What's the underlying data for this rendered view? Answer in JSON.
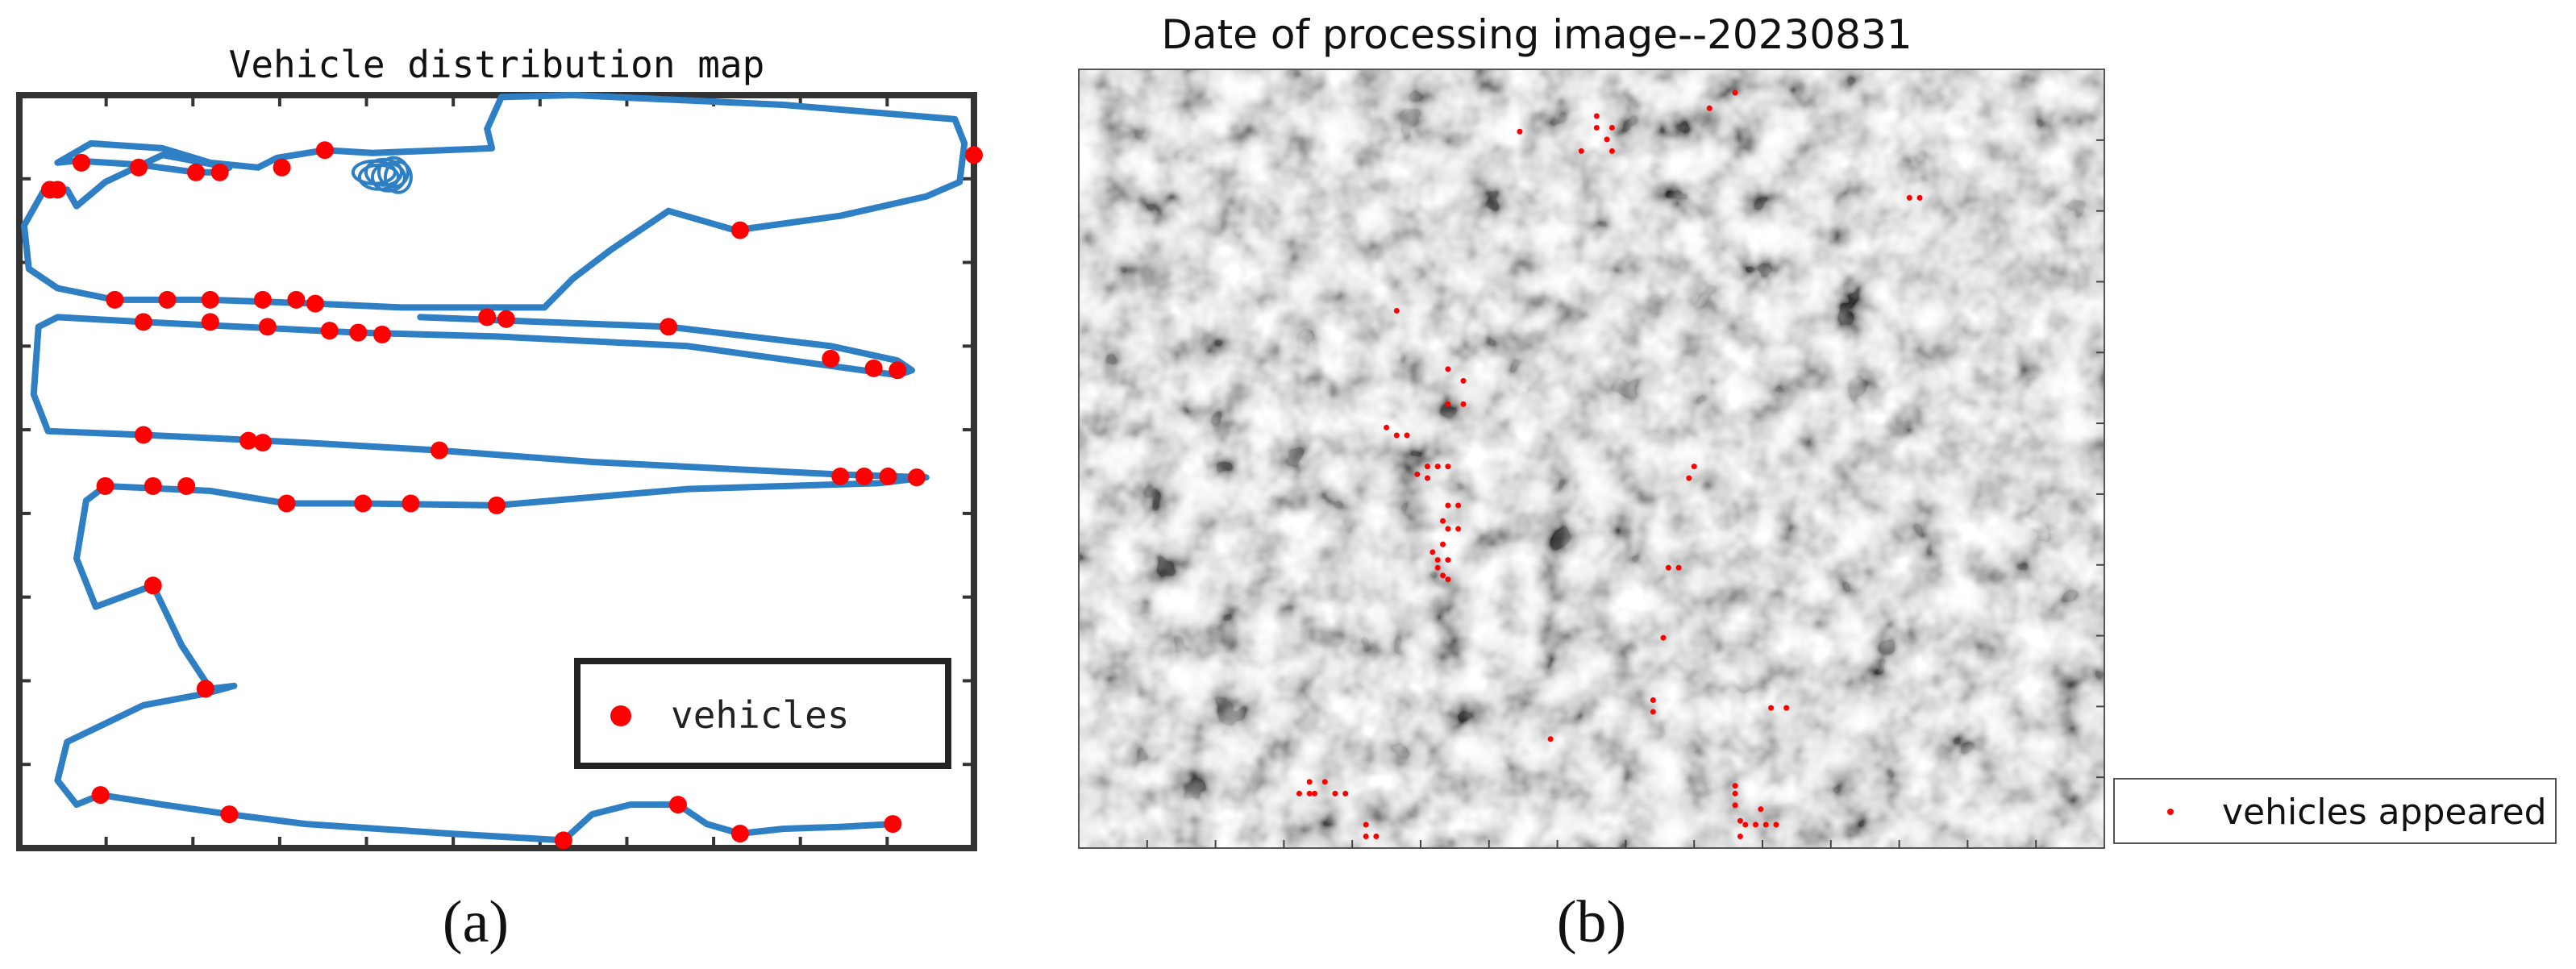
{
  "chart_data": [
    {
      "type": "scatter",
      "title": "Vehicle distribution map",
      "caption": "(a)",
      "xlabel": "",
      "ylabel": "",
      "xlim": [
        0,
        1000
      ],
      "ylim": [
        0,
        780
      ],
      "grid": false,
      "legend": {
        "position": "bottom-right",
        "entries": [
          "vehicles"
        ]
      },
      "series": [
        {
          "name": "vehicles",
          "marker": "circle",
          "color": "#ff0000",
          "points": [
            [
              65,
              710
            ],
            [
              40,
              682
            ],
            [
              32,
              682
            ],
            [
              125,
              705
            ],
            [
              185,
              700
            ],
            [
              210,
              700
            ],
            [
              275,
              705
            ],
            [
              320,
              723
            ],
            [
              1000,
              718
            ],
            [
              755,
              640
            ],
            [
              100,
              568
            ],
            [
              155,
              568
            ],
            [
              200,
              568
            ],
            [
              255,
              568
            ],
            [
              290,
              568
            ],
            [
              310,
              564
            ],
            [
              490,
              550
            ],
            [
              510,
              548
            ],
            [
              680,
              540
            ],
            [
              130,
              545
            ],
            [
              200,
              545
            ],
            [
              260,
              540
            ],
            [
              325,
              536
            ],
            [
              355,
              534
            ],
            [
              380,
              532
            ],
            [
              850,
              507
            ],
            [
              895,
              497
            ],
            [
              920,
              495
            ],
            [
              130,
              428
            ],
            [
              240,
              422
            ],
            [
              255,
              420
            ],
            [
              440,
              412
            ],
            [
              90,
              375
            ],
            [
              140,
              375
            ],
            [
              175,
              375
            ],
            [
              280,
              357
            ],
            [
              360,
              357
            ],
            [
              410,
              357
            ],
            [
              500,
              355
            ],
            [
              860,
              385
            ],
            [
              885,
              385
            ],
            [
              910,
              385
            ],
            [
              940,
              384
            ],
            [
              140,
              272
            ],
            [
              195,
              165
            ],
            [
              85,
              55
            ],
            [
              220,
              35
            ],
            [
              570,
              8
            ],
            [
              690,
              45
            ],
            [
              755,
              15
            ],
            [
              915,
              25
            ]
          ]
        },
        {
          "name": "trajectory",
          "color": "#2e7fc4",
          "points": [
            [
              40,
              710
            ],
            [
              60,
              712
            ],
            [
              125,
              708
            ],
            [
              185,
              700
            ],
            [
              210,
              700
            ],
            [
              220,
              705
            ],
            [
              150,
              718
            ],
            [
              90,
              690
            ],
            [
              60,
              665
            ],
            [
              50,
              682
            ],
            [
              25,
              680
            ],
            [
              5,
              645
            ],
            [
              10,
              600
            ],
            [
              40,
              580
            ],
            [
              100,
              568
            ],
            [
              200,
              568
            ],
            [
              310,
              564
            ],
            [
              400,
              560
            ],
            [
              550,
              560
            ],
            [
              580,
              590
            ],
            [
              620,
              620
            ],
            [
              680,
              660
            ],
            [
              750,
              640
            ],
            [
              860,
              655
            ],
            [
              950,
              675
            ],
            [
              985,
              690
            ],
            [
              990,
              730
            ],
            [
              980,
              755
            ],
            [
              800,
              770
            ],
            [
              580,
              780
            ],
            [
              505,
              778
            ],
            [
              490,
              745
            ],
            [
              495,
              725
            ],
            [
              370,
              720
            ],
            [
              320,
              723
            ],
            [
              270,
              715
            ],
            [
              250,
              705
            ],
            [
              200,
              710
            ],
            [
              150,
              725
            ],
            [
              75,
              730
            ],
            [
              40,
              710
            ]
          ]
        },
        {
          "name": "trajectory",
          "color": "#2e7fc4",
          "points": [
            [
              420,
              550
            ],
            [
              680,
              540
            ],
            [
              850,
              520
            ],
            [
              920,
              505
            ],
            [
              935,
              495
            ],
            [
              920,
              490
            ],
            [
              700,
              520
            ],
            [
              500,
              530
            ],
            [
              355,
              534
            ],
            [
              130,
              545
            ],
            [
              40,
              550
            ],
            [
              20,
              540
            ],
            [
              15,
              470
            ],
            [
              30,
              432
            ],
            [
              130,
              428
            ],
            [
              300,
              420
            ],
            [
              440,
              412
            ],
            [
              600,
              400
            ],
            [
              860,
              387
            ],
            [
              950,
              384
            ],
            [
              900,
              378
            ],
            [
              700,
              372
            ],
            [
              500,
              355
            ],
            [
              360,
              357
            ],
            [
              280,
              357
            ],
            [
              200,
              370
            ],
            [
              90,
              375
            ],
            [
              70,
              360
            ],
            [
              60,
              300
            ],
            [
              80,
              250
            ],
            [
              140,
              272
            ],
            [
              170,
              210
            ],
            [
              200,
              165
            ],
            [
              225,
              168
            ],
            [
              195,
              160
            ],
            [
              130,
              148
            ],
            [
              50,
              110
            ],
            [
              40,
              70
            ],
            [
              60,
              45
            ],
            [
              85,
              55
            ],
            [
              150,
              45
            ],
            [
              220,
              35
            ],
            [
              300,
              25
            ],
            [
              450,
              15
            ],
            [
              570,
              8
            ],
            [
              600,
              35
            ],
            [
              640,
              45
            ],
            [
              690,
              45
            ],
            [
              720,
              25
            ],
            [
              755,
              15
            ],
            [
              800,
              20
            ],
            [
              860,
              22
            ],
            [
              915,
              25
            ]
          ]
        }
      ]
    },
    {
      "type": "heatmap",
      "title": "Date of processing image--20230831",
      "caption": "(b)",
      "xlabel": "",
      "ylabel": "",
      "colormap": "gray",
      "grid": false,
      "legend": {
        "position": "outside-right-bottom",
        "entries": [
          "vehicles appeared"
        ]
      },
      "series": [
        {
          "name": "vehicles appeared",
          "marker": "point",
          "color": "#ff0000",
          "points": [
            [
              0.43,
              0.92
            ],
            [
              0.505,
              0.94
            ],
            [
              0.505,
              0.925
            ],
            [
              0.52,
              0.925
            ],
            [
              0.515,
              0.91
            ],
            [
              0.52,
              0.895
            ],
            [
              0.49,
              0.895
            ],
            [
              0.64,
              0.97
            ],
            [
              0.81,
              0.835
            ],
            [
              0.82,
              0.835
            ],
            [
              0.31,
              0.69
            ],
            [
              0.36,
              0.615
            ],
            [
              0.375,
              0.6
            ],
            [
              0.36,
              0.57
            ],
            [
              0.375,
              0.57
            ],
            [
              0.3,
              0.54
            ],
            [
              0.31,
              0.53
            ],
            [
              0.32,
              0.53
            ],
            [
              0.34,
              0.49
            ],
            [
              0.34,
              0.475
            ],
            [
              0.35,
              0.49
            ],
            [
              0.36,
              0.49
            ],
            [
              0.33,
              0.48
            ],
            [
              0.36,
              0.44
            ],
            [
              0.37,
              0.44
            ],
            [
              0.355,
              0.42
            ],
            [
              0.36,
              0.41
            ],
            [
              0.37,
              0.41
            ],
            [
              0.355,
              0.39
            ],
            [
              0.345,
              0.38
            ],
            [
              0.35,
              0.37
            ],
            [
              0.36,
              0.37
            ],
            [
              0.35,
              0.36
            ],
            [
              0.355,
              0.35
            ],
            [
              0.36,
              0.345
            ],
            [
              0.6,
              0.49
            ],
            [
              0.595,
              0.475
            ],
            [
              0.575,
              0.36
            ],
            [
              0.585,
              0.36
            ],
            [
              0.57,
              0.27
            ],
            [
              0.56,
              0.19
            ],
            [
              0.56,
              0.175
            ],
            [
              0.675,
              0.18
            ],
            [
              0.69,
              0.18
            ],
            [
              0.46,
              0.14
            ],
            [
              0.64,
              0.08
            ],
            [
              0.615,
              0.95
            ],
            [
              0.225,
              0.085
            ],
            [
              0.23,
              0.07
            ],
            [
              0.24,
              0.085
            ],
            [
              0.25,
              0.07
            ],
            [
              0.26,
              0.07
            ],
            [
              0.215,
              0.07
            ],
            [
              0.225,
              0.07
            ],
            [
              0.28,
              0.03
            ],
            [
              0.29,
              0.015
            ],
            [
              0.28,
              0.015
            ],
            [
              0.64,
              0.07
            ],
            [
              0.64,
              0.055
            ],
            [
              0.65,
              0.03
            ],
            [
              0.66,
              0.03
            ],
            [
              0.67,
              0.03
            ],
            [
              0.68,
              0.03
            ],
            [
              0.645,
              0.035
            ],
            [
              0.665,
              0.05
            ],
            [
              0.645,
              0.015
            ]
          ]
        }
      ]
    }
  ]
}
